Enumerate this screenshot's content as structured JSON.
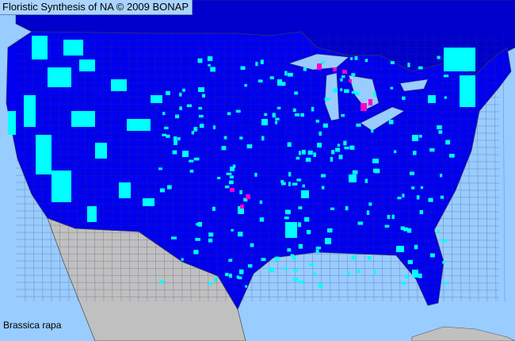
{
  "title": "Floristic Synthesis of NA © 2009 BONAP",
  "species": "Brassica rapa",
  "colors": {
    "ocean": "#99ccff",
    "native_or_present": "#0000ee",
    "canada": "#0000cc",
    "present_not_native": "#00ffff",
    "rare_or_noxious": "#ff00cc",
    "mexico": "#c0c0c0",
    "county_lines": "#333366"
  }
}
